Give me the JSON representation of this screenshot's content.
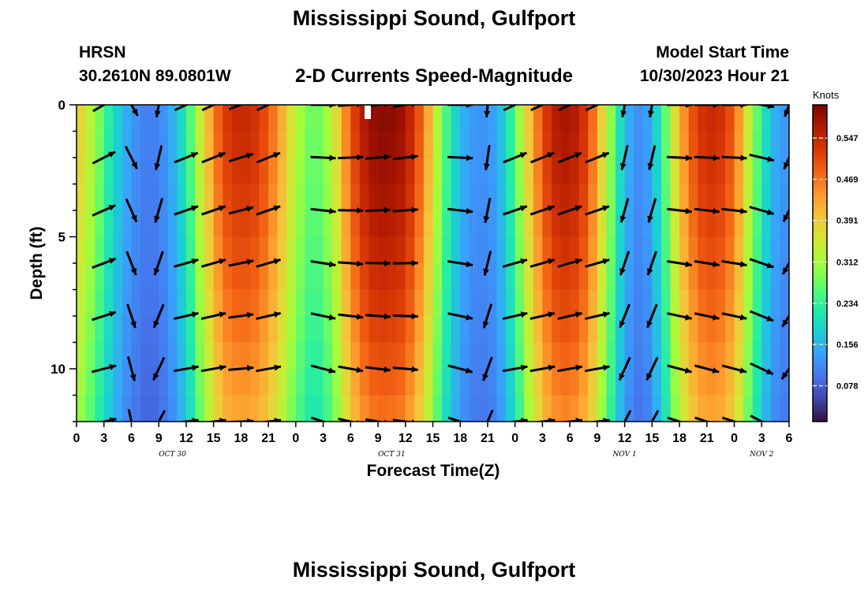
{
  "header": {
    "title": "Mississippi Sound, Gulfport",
    "station_id": "HRSN",
    "station_coords": "30.2610N  89.0801W",
    "chart_title": "2-D Currents Speed-Magnitude",
    "model_start_label": "Model Start Time",
    "model_start_value": "10/30/2023 Hour 21"
  },
  "footer": {
    "title": "Mississippi Sound, Gulfport"
  },
  "colors": {
    "colormap": [
      "#30123b",
      "#4145ab",
      "#4675ed",
      "#39a2fc",
      "#1bcfd4",
      "#24eca6",
      "#61fc6c",
      "#a4fc3b",
      "#d1e834",
      "#f3c63a",
      "#fe9b2d",
      "#f36315",
      "#d93806",
      "#b11901",
      "#7a0403"
    ],
    "arrow": "#000000"
  },
  "chart_data": {
    "type": "heatmap",
    "xlabel": "Forecast Time(Z)",
    "ylabel": "Depth (ft)",
    "colorbar_label": "Knots",
    "xlim": [
      0,
      78
    ],
    "ylim": [
      12,
      0
    ],
    "x_ticks": [
      "0",
      "3",
      "6",
      "9",
      "12",
      "15",
      "18",
      "21",
      "0",
      "3",
      "6",
      "9",
      "12",
      "15",
      "18",
      "21",
      "0",
      "3",
      "6",
      "9",
      "12",
      "15",
      "18",
      "21",
      "0",
      "3",
      "6"
    ],
    "y_ticks": [
      0,
      5,
      10
    ],
    "date_labels": [
      {
        "text": "OCT 30",
        "x": 10.5
      },
      {
        "text": "OCT 31",
        "x": 34.5
      },
      {
        "text": "NOV 1",
        "x": 60
      },
      {
        "text": "NOV 2",
        "x": 75
      }
    ],
    "colorbar_ticks": [
      "0.078",
      "0.156",
      "0.234",
      "0.312",
      "0.391",
      "0.469",
      "0.547"
    ],
    "colorbar_range": [
      0.01,
      0.61
    ],
    "speed_profile_surface": [
      {
        "x": 0,
        "v": 0.4
      },
      {
        "x": 2,
        "v": 0.31
      },
      {
        "x": 4,
        "v": 0.2
      },
      {
        "x": 6,
        "v": 0.13
      },
      {
        "x": 8,
        "v": 0.1
      },
      {
        "x": 10,
        "v": 0.13
      },
      {
        "x": 12,
        "v": 0.22
      },
      {
        "x": 14,
        "v": 0.38
      },
      {
        "x": 16,
        "v": 0.52
      },
      {
        "x": 18,
        "v": 0.55
      },
      {
        "x": 20,
        "v": 0.53
      },
      {
        "x": 22,
        "v": 0.45
      },
      {
        "x": 24,
        "v": 0.33
      },
      {
        "x": 26,
        "v": 0.26
      },
      {
        "x": 28,
        "v": 0.33
      },
      {
        "x": 30,
        "v": 0.5
      },
      {
        "x": 32,
        "v": 0.59
      },
      {
        "x": 34,
        "v": 0.6
      },
      {
        "x": 36,
        "v": 0.58
      },
      {
        "x": 38,
        "v": 0.47
      },
      {
        "x": 40,
        "v": 0.28
      },
      {
        "x": 42,
        "v": 0.16
      },
      {
        "x": 44,
        "v": 0.12
      },
      {
        "x": 46,
        "v": 0.14
      },
      {
        "x": 48,
        "v": 0.26
      },
      {
        "x": 50,
        "v": 0.44
      },
      {
        "x": 52,
        "v": 0.56
      },
      {
        "x": 54,
        "v": 0.58
      },
      {
        "x": 56,
        "v": 0.52
      },
      {
        "x": 58,
        "v": 0.34
      },
      {
        "x": 60,
        "v": 0.16
      },
      {
        "x": 62,
        "v": 0.11
      },
      {
        "x": 64,
        "v": 0.22
      },
      {
        "x": 66,
        "v": 0.42
      },
      {
        "x": 68,
        "v": 0.53
      },
      {
        "x": 70,
        "v": 0.55
      },
      {
        "x": 72,
        "v": 0.49
      },
      {
        "x": 74,
        "v": 0.3
      },
      {
        "x": 76,
        "v": 0.16
      },
      {
        "x": 78,
        "v": 0.12
      }
    ],
    "arrows": {
      "x": [
        3,
        6,
        9,
        12,
        15,
        18,
        21,
        27,
        30,
        33,
        36,
        42,
        45,
        48,
        51,
        54,
        57,
        60,
        63,
        66,
        69,
        72,
        75,
        78
      ],
      "depth": [
        0,
        2,
        4,
        6,
        8,
        10,
        12
      ],
      "surface_angle_deg": [
        30,
        -60,
        -100,
        25,
        25,
        20,
        25,
        0,
        5,
        8,
        10,
        0,
        -95,
        25,
        25,
        25,
        25,
        -100,
        -100,
        0,
        0,
        0,
        -10,
        -110
      ]
    }
  }
}
